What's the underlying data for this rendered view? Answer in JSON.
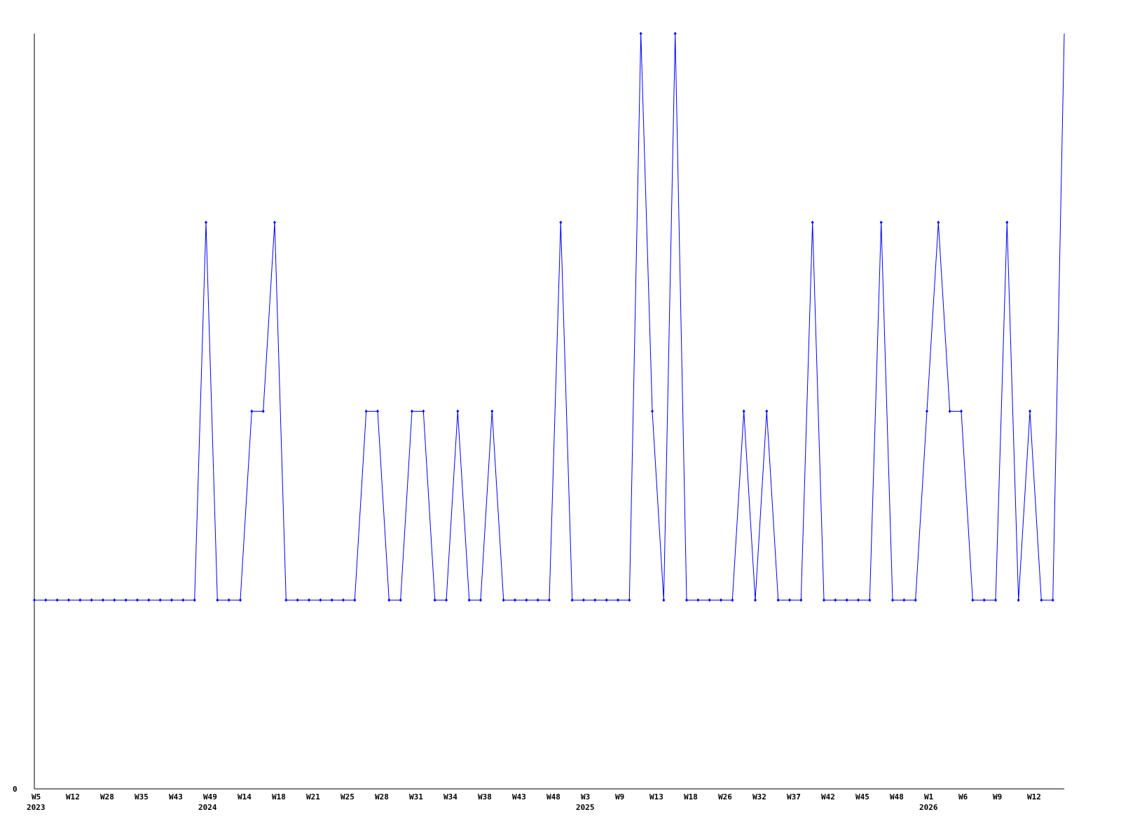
{
  "chart_data": {
    "type": "line",
    "title": "",
    "xlabel": "",
    "ylabel": "",
    "ylim": [
      0,
      4
    ],
    "y_tick_labels": [
      "0"
    ],
    "grid": false,
    "line_color": "#0000ff",
    "axis_color": "#000000",
    "x_tick_every": 3,
    "x_tick_labels": [
      "W5",
      "W12",
      "W28",
      "W35",
      "W43",
      "W49",
      "W14",
      "W18",
      "W21",
      "W25",
      "W28",
      "W31",
      "W34",
      "W38",
      "W43",
      "W48",
      "W3",
      "W9",
      "W13",
      "W18",
      "W26",
      "W32",
      "W37",
      "W42",
      "W45",
      "W48",
      "W1",
      "W6",
      "W9",
      "W12"
    ],
    "year_labels": [
      {
        "tick_index": 0,
        "label": "2023"
      },
      {
        "tick_index": 5,
        "label": "2024"
      },
      {
        "tick_index": 16,
        "label": "2025"
      },
      {
        "tick_index": 26,
        "label": "2026"
      }
    ],
    "values": [
      1,
      1,
      1,
      1,
      1,
      1,
      1,
      1,
      1,
      1,
      1,
      1,
      1,
      1,
      1,
      3,
      1,
      1,
      1,
      2,
      2,
      3,
      1,
      1,
      1,
      1,
      1,
      1,
      1,
      2,
      2,
      1,
      1,
      2,
      2,
      1,
      1,
      2,
      1,
      1,
      2,
      1,
      1,
      1,
      1,
      1,
      3,
      1,
      1,
      1,
      1,
      1,
      1,
      4,
      2,
      1,
      4,
      1,
      1,
      1,
      1,
      1,
      2,
      1,
      2,
      1,
      1,
      1,
      3,
      1,
      1,
      1,
      1,
      1,
      3,
      1,
      1,
      1,
      2,
      3,
      2,
      2,
      1,
      1,
      1,
      3,
      1,
      2,
      1,
      1,
      4
    ]
  }
}
